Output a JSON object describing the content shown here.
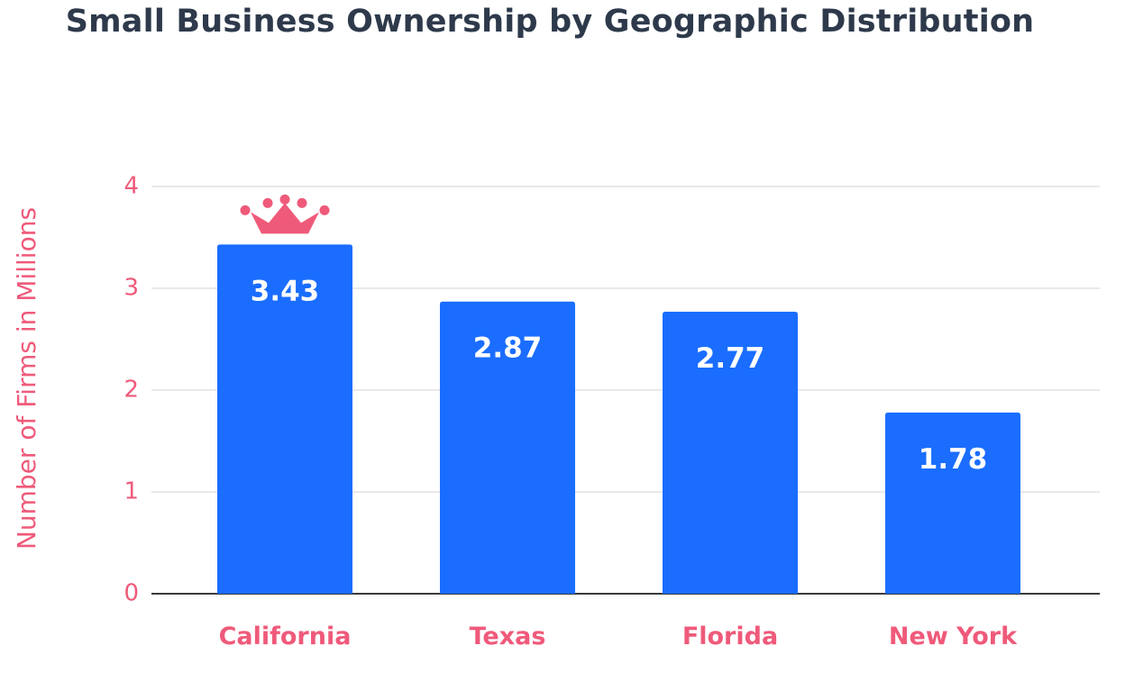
{
  "chart_data": {
    "type": "bar",
    "title": "Small Business Ownership by Geographic Distribution",
    "xlabel": "",
    "ylabel": "Number of Firms in Millions",
    "categories": [
      "California",
      "Texas",
      "Florida",
      "New York"
    ],
    "values": [
      3.43,
      2.87,
      2.77,
      1.78
    ],
    "data_labels": [
      "3.43",
      "2.87",
      "2.77",
      "1.78"
    ],
    "yticks": [
      "0",
      "1",
      "2",
      "3",
      "4"
    ],
    "ylim": [
      0,
      4
    ],
    "grid": true,
    "legend": "none",
    "highlight_icon": "crown-icon",
    "highlight_category": "California"
  },
  "colors": {
    "bar": "#1a6dff",
    "accent": "#ef5a7a",
    "title": "#2e3a4b",
    "grid": "#dcdcdc",
    "axis": "#3a3a3a"
  }
}
